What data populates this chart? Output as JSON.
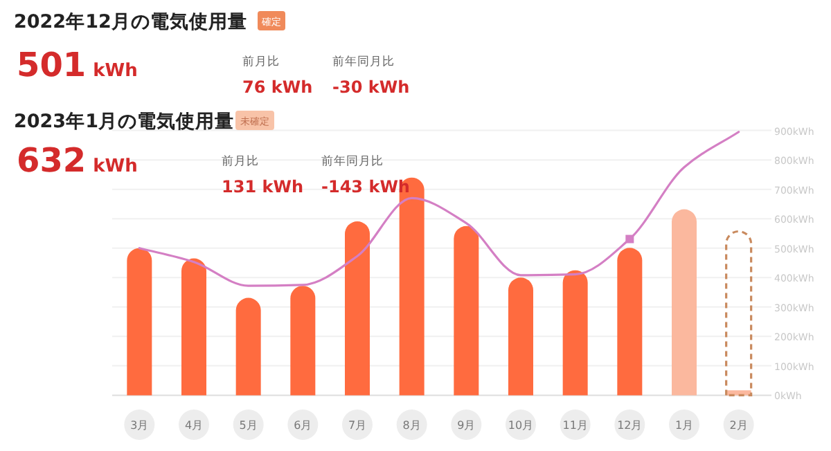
{
  "chart_data": {
    "type": "bar",
    "title": "2022年12月の電気使用量",
    "annotations": [
      "確定",
      "501 kWh",
      "前月比",
      "76 kWh",
      "前年同月比",
      "-30 kWh",
      "2023年1月の電気使用量",
      "未確定",
      "632 kWh",
      "前月比",
      "131 kWh",
      "前年同月比",
      "-143 kWh"
    ],
    "categories": [
      "3月",
      "4月",
      "5月",
      "6月",
      "7月",
      "8月",
      "9月",
      "10月",
      "11月",
      "12月",
      "1月",
      "2月"
    ],
    "series": [
      {
        "colors": [
          "#ff6b3f",
          "#ff6b3f",
          "#ff6b3f",
          "#ff6b3f",
          "#ff6b3f",
          "#ff6b3f",
          "#ff6b3f",
          "#ff6b3f",
          "#ff6b3f",
          "#ff6b3f",
          "#fbb89e",
          "#fbb89e"
        ],
        "values": [
          500,
          465,
          331,
          372,
          591,
          740,
          575,
          400,
          425,
          501,
          632,
          17
        ]
      },
      {
        "color": "#c98a5e",
        "line_style": "dashed",
        "values": [
          null,
          null,
          null,
          null,
          null,
          null,
          null,
          null,
          null,
          null,
          null,
          557
        ]
      },
      {
        "type": "line",
        "color": "#d47fc4",
        "values": [
          500,
          453,
          372,
          375,
          473,
          670,
          585,
          408,
          411,
          531,
          775,
          895
        ]
      },
      {
        "type": "scatter",
        "x": [
          "12月"
        ],
        "color": "#d47fc4",
        "marker": "square",
        "values": [
          531
        ]
      }
    ],
    "ylim": [
      0,
      900
    ],
    "yticks": [
      {
        "value": 0,
        "label": "0kWh"
      },
      {
        "value": 100,
        "label": "100kWh"
      },
      {
        "value": 200,
        "label": "200kWh"
      },
      {
        "value": 300,
        "label": "300kWh"
      },
      {
        "value": 400,
        "label": "400kWh"
      },
      {
        "value": 500,
        "label": "500kWh"
      },
      {
        "value": 600,
        "label": "600kWh"
      },
      {
        "value": 700,
        "label": "700kWh"
      },
      {
        "value": 800,
        "label": "800kWh"
      },
      {
        "value": 900,
        "label": "900kWh"
      }
    ],
    "grid": "y"
  }
}
